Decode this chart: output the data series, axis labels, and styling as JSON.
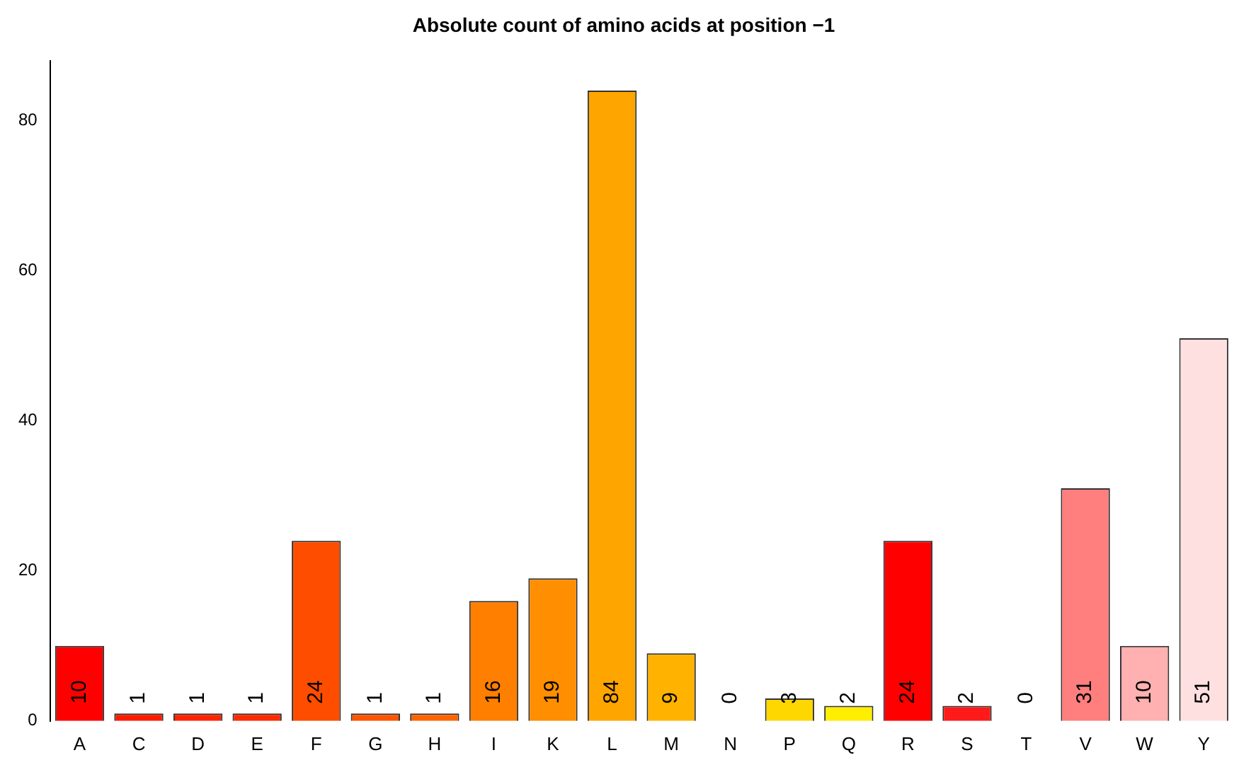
{
  "chart_data": {
    "type": "bar",
    "title": "Absolute count of amino acids at position −1",
    "categories": [
      "A",
      "C",
      "D",
      "E",
      "F",
      "G",
      "H",
      "I",
      "K",
      "L",
      "M",
      "N",
      "P",
      "Q",
      "R",
      "S",
      "T",
      "V",
      "W",
      "Y"
    ],
    "values": [
      10,
      1,
      1,
      1,
      24,
      1,
      1,
      16,
      19,
      84,
      9,
      0,
      3,
      2,
      24,
      2,
      0,
      31,
      10,
      51
    ],
    "colors": [
      "#ff0000",
      "#ff1a00",
      "#ff2300",
      "#ff2b00",
      "#ff4d00",
      "#ff5500",
      "#ff6400",
      "#ff7f00",
      "#ff8f00",
      "#ffa500",
      "#ffb300",
      "#ffc800",
      "#ffd700",
      "#ffee00",
      "#ff0000",
      "#ff1a1a",
      "#ff3333",
      "#ff7f7f",
      "#ffb0b0",
      "#ffe0e0"
    ],
    "ylim": [
      0,
      88
    ],
    "yticks": [
      0,
      20,
      40,
      60,
      80
    ],
    "grid": false,
    "legend": false,
    "data_labels": true
  }
}
